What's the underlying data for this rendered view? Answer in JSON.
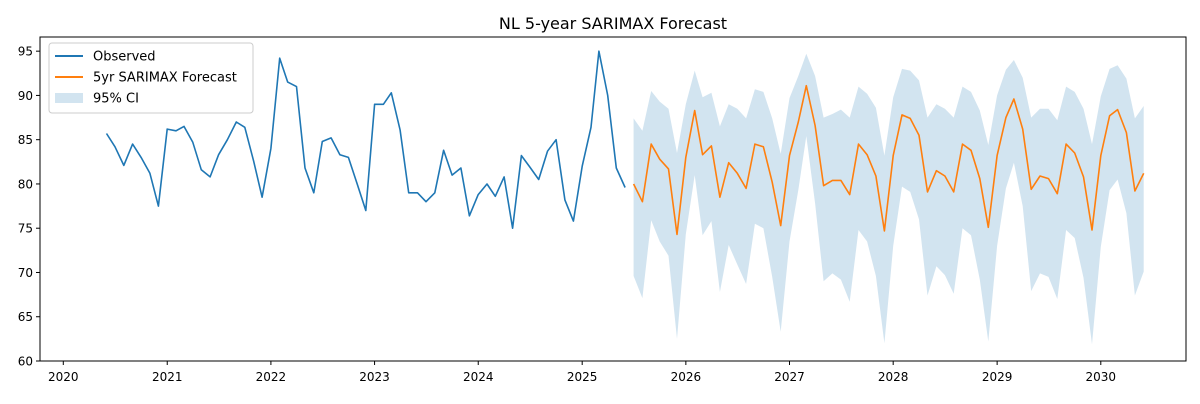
{
  "chart_data": {
    "type": "line",
    "title": "NL 5-year SARIMAX Forecast",
    "xlabel": "",
    "ylabel": "",
    "xlim": [
      "2019-10-11",
      "2030-10-28"
    ],
    "ylim": [
      60,
      96.6
    ],
    "x_ticks": [
      "2020",
      "2021",
      "2022",
      "2023",
      "2024",
      "2025",
      "2026",
      "2027",
      "2028",
      "2029",
      "2030"
    ],
    "y_ticks": [
      60,
      65,
      70,
      75,
      80,
      85,
      90,
      95
    ],
    "grid": false,
    "legend_position": "top-left",
    "colors": {
      "observed": "#1f77b4",
      "forecast": "#ff7f0e",
      "ci": "#1f77b4"
    },
    "series": [
      {
        "name": "Observed",
        "start": "2020-06",
        "frequency": "monthly",
        "values": [
          85.7,
          84.2,
          82.1,
          84.5,
          83.0,
          81.2,
          77.5,
          86.2,
          86.0,
          86.5,
          84.7,
          81.6,
          80.8,
          83.3,
          85.0,
          87.0,
          86.4,
          82.6,
          78.5,
          84.0,
          94.2,
          91.5,
          91.0,
          81.8,
          79.0,
          84.8,
          85.2,
          83.3,
          83.0,
          80.0,
          77.0,
          89.0,
          89.0,
          90.3,
          86.1,
          79.0,
          79.0,
          78.0,
          79.0,
          83.8,
          81.0,
          81.8,
          76.4,
          78.8,
          80.0,
          78.6,
          80.8,
          75.0,
          83.2,
          81.9,
          80.5,
          83.7,
          85.0,
          78.2,
          75.8,
          82.0,
          86.4,
          95.0,
          90.0,
          81.8,
          79.6
        ]
      },
      {
        "name": "5yr SARIMAX Forecast",
        "start": "2025-07",
        "frequency": "monthly",
        "values": [
          80.0,
          78.0,
          84.5,
          82.8,
          81.7,
          74.3,
          83.0,
          88.3,
          83.3,
          84.3,
          78.5,
          82.4,
          81.2,
          79.5,
          84.5,
          84.2,
          80.2,
          75.3,
          83.2,
          87.0,
          91.1,
          86.6,
          79.8,
          80.4,
          80.4,
          78.8,
          84.5,
          83.3,
          80.9,
          74.7,
          83.2,
          87.8,
          87.4,
          85.5,
          79.1,
          81.5,
          80.9,
          79.1,
          84.5,
          83.8,
          80.6,
          75.1,
          83.2,
          87.5,
          89.6,
          86.2,
          79.4,
          80.9,
          80.6,
          78.9,
          84.5,
          83.5,
          80.8,
          74.8,
          83.2,
          87.7,
          88.4,
          85.8,
          79.2,
          81.2
        ]
      },
      {
        "name": "95% CI",
        "start": "2025-07",
        "frequency": "monthly",
        "lower": [
          69.6,
          67.1,
          75.9,
          73.5,
          71.9,
          62.5,
          74.3,
          81.0,
          74.2,
          75.8,
          67.8,
          73.1,
          70.9,
          68.7,
          75.5,
          75.0,
          69.5,
          63.3,
          73.5,
          79.3,
          85.4,
          77.8,
          69.0,
          69.9,
          69.2,
          66.7,
          74.8,
          73.5,
          69.6,
          62.0,
          73.0,
          79.7,
          79.1,
          76.0,
          67.4,
          70.7,
          69.7,
          67.6,
          75.0,
          74.2,
          69.2,
          62.2,
          73.0,
          79.5,
          82.4,
          77.5,
          67.9,
          69.9,
          69.5,
          67.0,
          74.8,
          73.9,
          69.4,
          61.9,
          72.9,
          79.3,
          80.5,
          76.7,
          67.4,
          70.1
        ],
        "upper": [
          87.4,
          86.0,
          90.5,
          89.3,
          88.5,
          83.5,
          89.0,
          92.8,
          89.8,
          90.3,
          86.5,
          89.0,
          88.5,
          87.4,
          90.7,
          90.4,
          87.4,
          83.4,
          89.7,
          92.2,
          94.7,
          92.2,
          87.5,
          87.9,
          88.4,
          87.5,
          91.0,
          90.2,
          88.6,
          83.2,
          89.8,
          93.0,
          92.8,
          91.7,
          87.5,
          89.0,
          88.5,
          87.5,
          91.0,
          90.4,
          88.3,
          84.4,
          90.0,
          92.9,
          94.0,
          92.0,
          87.5,
          88.5,
          88.5,
          87.2,
          91.0,
          90.4,
          88.5,
          84.5,
          89.9,
          93.0,
          93.4,
          91.9,
          87.4,
          88.8
        ]
      }
    ]
  }
}
